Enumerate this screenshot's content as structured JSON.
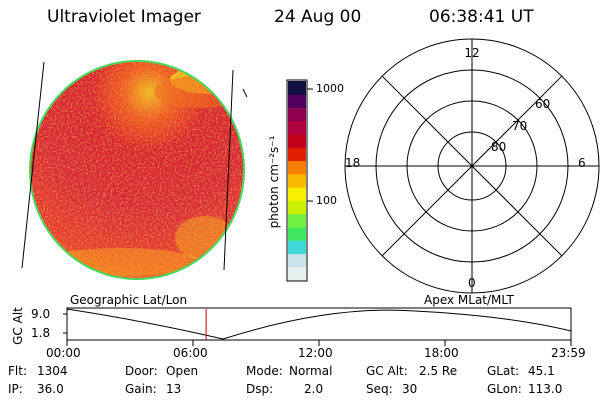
{
  "header": {
    "instrument": "Ultraviolet Imager",
    "date": "24 Aug 00",
    "time": "06:38:41 UT"
  },
  "colorbar": {
    "unit_label": "photon cm⁻²s⁻¹",
    "tick_labels": [
      "1000",
      "100"
    ],
    "colors": [
      "#e8f0f0",
      "#c8e4e8",
      "#40d8d8",
      "#40e860",
      "#70f040",
      "#c8f000",
      "#f8f000",
      "#f8b800",
      "#f88000",
      "#e02000",
      "#c00018",
      "#b00040",
      "#900050",
      "#500060",
      "#101040"
    ]
  },
  "polar_plot": {
    "mlt_labels": {
      "top": "12",
      "right": "6",
      "bottom": "0",
      "left": "18"
    },
    "lat_labels": [
      "60",
      "70",
      "80"
    ]
  },
  "alt_plot": {
    "ylabel": "GC Alt",
    "y_ticks": [
      "9.0",
      "1.8"
    ],
    "left_caption": "Geographic Lat/Lon",
    "right_caption": "Apex MLat/MLT",
    "x_ticks": [
      "00:00",
      "06:00",
      "12:00",
      "18:00",
      "23:59"
    ],
    "current_time_fraction": 0.276
  },
  "footer": {
    "row1": [
      {
        "label": "Flt:",
        "value": "1304"
      },
      {
        "label": "Door:",
        "value": "Open"
      },
      {
        "label": "Mode:",
        "value": "Normal"
      },
      {
        "label": "GC Alt:",
        "value": "2.5 Re"
      },
      {
        "label": "GLat:",
        "value": "45.1"
      }
    ],
    "row2": [
      {
        "label": "IP:",
        "value": "36.0"
      },
      {
        "label": "Gain:",
        "value": "13"
      },
      {
        "label": "Dsp:",
        "value": "2.0"
      },
      {
        "label": "Seq:",
        "value": "30"
      },
      {
        "label": "GLon:",
        "value": "113.0"
      }
    ]
  }
}
